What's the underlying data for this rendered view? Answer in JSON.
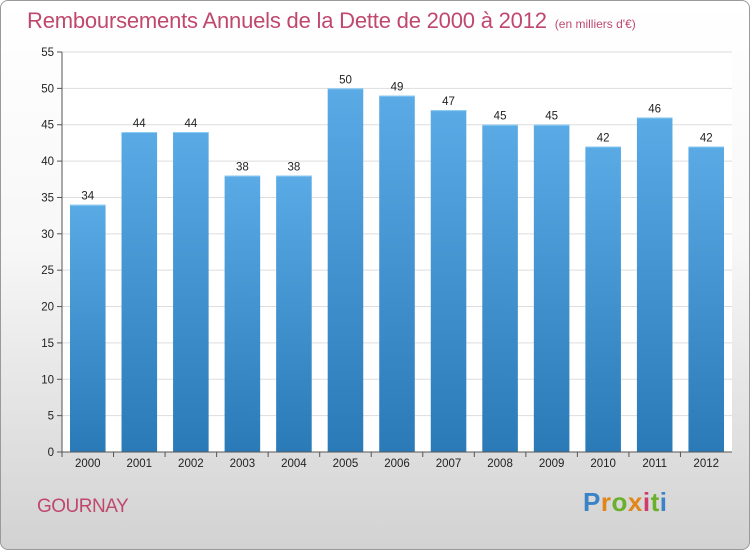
{
  "title": "Remboursements Annuels de la Dette de 2000 à 2012",
  "subtitle": "(en milliers d'€)",
  "place_name": "GOURNAY",
  "logo": {
    "text": "Proxiti",
    "letters": [
      "P",
      "r",
      "o",
      "x",
      "i",
      "t",
      "i"
    ],
    "colors": [
      "#3a83c8",
      "#e2851a",
      "#6bb02c",
      "#e2851a",
      "#d23a6a",
      "#6bb02c",
      "#3a83c8"
    ]
  },
  "colors": {
    "title": "#c0486e",
    "bar_top": "#5aaae6",
    "bar_bottom": "#2a7ab8",
    "grid": "#dddddd",
    "axis": "#555555"
  },
  "chart_data": {
    "type": "bar",
    "title": "Remboursements Annuels de la Dette de 2000 à 2012",
    "subtitle": "(en milliers d'€)",
    "xlabel": "",
    "ylabel": "",
    "categories": [
      "2000",
      "2001",
      "2002",
      "2003",
      "2004",
      "2005",
      "2006",
      "2007",
      "2008",
      "2009",
      "2010",
      "2011",
      "2012"
    ],
    "values": [
      34,
      44,
      44,
      38,
      38,
      50,
      49,
      47,
      45,
      45,
      42,
      46,
      42
    ],
    "ylim": [
      0,
      55
    ],
    "yticks": [
      0,
      5,
      10,
      15,
      20,
      25,
      30,
      35,
      40,
      45,
      50,
      55
    ],
    "grid": true,
    "data_labels": true
  }
}
